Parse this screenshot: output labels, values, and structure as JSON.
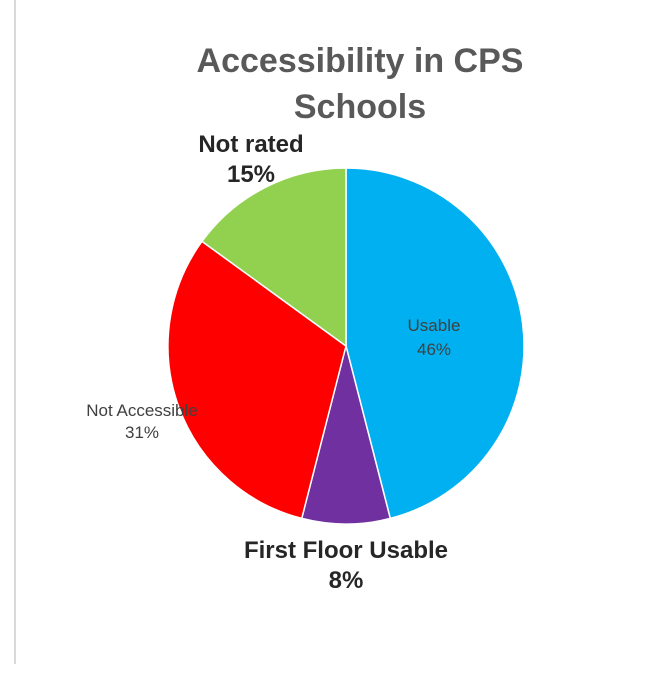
{
  "chart_data": {
    "type": "pie",
    "title": "Accessibility in CPS Schools",
    "start_angle_deg": 0,
    "direction": "clockwise",
    "slices": [
      {
        "label": "Usable",
        "value": 46,
        "display": "46%",
        "color": "#00B0F0",
        "label_style": "plain"
      },
      {
        "label": "First Floor Usable",
        "value": 8,
        "display": "8%",
        "color": "#7030A0",
        "label_style": "bold"
      },
      {
        "label": "Not Accessible",
        "value": 31,
        "display": "31%",
        "color": "#FF0000",
        "label_style": "plain"
      },
      {
        "label": "Not rated",
        "value": 15,
        "display": "15%",
        "color": "#92D050",
        "label_style": "bold"
      }
    ]
  }
}
